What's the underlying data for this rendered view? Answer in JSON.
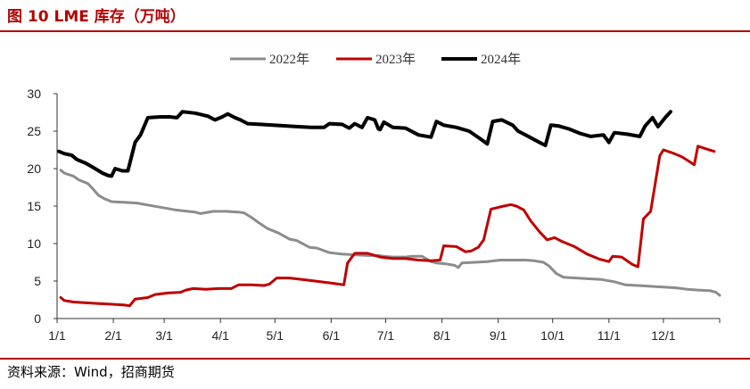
{
  "header": {
    "title": "图 10 LME 库存（万吨）"
  },
  "footer": {
    "source": "资料来源：Wind，招商期货"
  },
  "chart_data": {
    "type": "line",
    "x_ticks": [
      "1/1",
      "2/1",
      "3/1",
      "4/1",
      "5/1",
      "6/1",
      "7/1",
      "8/1",
      "9/1",
      "10/1",
      "11/1",
      "12/1"
    ],
    "y_ticks": [
      "0",
      "5",
      "10",
      "15",
      "20",
      "25",
      "30"
    ],
    "ylim": [
      0,
      30
    ],
    "grid": false,
    "legend_position": "top-center",
    "series": [
      {
        "name": "2022年",
        "color": "#8c8c8c",
        "stroke_width": 3,
        "points": [
          [
            "1/3",
            19.8
          ],
          [
            "1/5",
            19.4
          ],
          [
            "1/10",
            19.0
          ],
          [
            "1/13",
            18.5
          ],
          [
            "1/18",
            18.0
          ],
          [
            "1/20",
            17.5
          ],
          [
            "1/24",
            16.4
          ],
          [
            "1/27",
            16.0
          ],
          [
            "1/31",
            15.6
          ],
          [
            "2/7",
            15.5
          ],
          [
            "2/14",
            15.4
          ],
          [
            "2/21",
            15.1
          ],
          [
            "2/28",
            14.8
          ],
          [
            "3/7",
            14.5
          ],
          [
            "3/14",
            14.3
          ],
          [
            "3/18",
            14.2
          ],
          [
            "3/21",
            14.0
          ],
          [
            "3/28",
            14.3
          ],
          [
            "4/4",
            14.3
          ],
          [
            "4/11",
            14.2
          ],
          [
            "4/14",
            14.1
          ],
          [
            "4/18",
            13.5
          ],
          [
            "4/22",
            12.8
          ],
          [
            "4/27",
            12.0
          ],
          [
            "5/3",
            11.4
          ],
          [
            "5/9",
            10.6
          ],
          [
            "5/13",
            10.4
          ],
          [
            "5/20",
            9.5
          ],
          [
            "5/24",
            9.4
          ],
          [
            "5/31",
            8.8
          ],
          [
            "6/7",
            8.6
          ],
          [
            "6/14",
            8.5
          ],
          [
            "6/21",
            8.4
          ],
          [
            "6/27",
            8.4
          ],
          [
            "6/30",
            8.3
          ],
          [
            "7/5",
            8.2
          ],
          [
            "7/12",
            8.2
          ],
          [
            "7/15",
            8.3
          ],
          [
            "7/21",
            8.3
          ],
          [
            "7/26",
            7.6
          ],
          [
            "7/29",
            7.4
          ],
          [
            "8/3",
            7.3
          ],
          [
            "8/8",
            7.1
          ],
          [
            "8/10",
            6.8
          ],
          [
            "8/12",
            7.4
          ],
          [
            "8/19",
            7.5
          ],
          [
            "8/26",
            7.6
          ],
          [
            "9/2",
            7.8
          ],
          [
            "9/9",
            7.8
          ],
          [
            "9/16",
            7.8
          ],
          [
            "9/21",
            7.7
          ],
          [
            "9/26",
            7.5
          ],
          [
            "9/29",
            7.0
          ],
          [
            "10/3",
            6.0
          ],
          [
            "10/7",
            5.5
          ],
          [
            "10/14",
            5.4
          ],
          [
            "10/21",
            5.3
          ],
          [
            "10/28",
            5.2
          ],
          [
            "11/4",
            4.9
          ],
          [
            "11/10",
            4.5
          ],
          [
            "11/17",
            4.4
          ],
          [
            "11/24",
            4.3
          ],
          [
            "12/1",
            4.2
          ],
          [
            "12/8",
            4.1
          ],
          [
            "12/14",
            3.9
          ],
          [
            "12/20",
            3.8
          ],
          [
            "12/27",
            3.7
          ],
          [
            "12/30",
            3.5
          ],
          [
            "1/2",
            3.1
          ]
        ]
      },
      {
        "name": "2023年",
        "color": "#c00000",
        "stroke_width": 3,
        "points": [
          [
            "1/3",
            2.8
          ],
          [
            "1/5",
            2.4
          ],
          [
            "1/10",
            2.2
          ],
          [
            "1/17",
            2.1
          ],
          [
            "1/24",
            2.0
          ],
          [
            "1/31",
            1.9
          ],
          [
            "2/7",
            1.8
          ],
          [
            "2/10",
            1.7
          ],
          [
            "2/13",
            2.6
          ],
          [
            "2/20",
            2.8
          ],
          [
            "2/24",
            3.2
          ],
          [
            "3/3",
            3.4
          ],
          [
            "3/10",
            3.5
          ],
          [
            "3/13",
            3.8
          ],
          [
            "3/17",
            4.0
          ],
          [
            "3/24",
            3.9
          ],
          [
            "3/31",
            4.0
          ],
          [
            "4/7",
            4.0
          ],
          [
            "4/11",
            4.5
          ],
          [
            "4/18",
            4.5
          ],
          [
            "4/25",
            4.4
          ],
          [
            "4/28",
            4.6
          ],
          [
            "5/2",
            5.4
          ],
          [
            "5/9",
            5.4
          ],
          [
            "5/16",
            5.2
          ],
          [
            "5/23",
            5.0
          ],
          [
            "5/30",
            4.8
          ],
          [
            "6/5",
            4.6
          ],
          [
            "6/8",
            4.5
          ],
          [
            "6/10",
            7.4
          ],
          [
            "6/14",
            8.7
          ],
          [
            "6/21",
            8.7
          ],
          [
            "6/28",
            8.2
          ],
          [
            "7/5",
            8.0
          ],
          [
            "7/12",
            8.0
          ],
          [
            "7/19",
            7.8
          ],
          [
            "7/26",
            7.7
          ],
          [
            "7/31",
            7.8
          ],
          [
            "8/2",
            9.7
          ],
          [
            "8/9",
            9.6
          ],
          [
            "8/14",
            8.9
          ],
          [
            "8/17",
            9.0
          ],
          [
            "8/21",
            9.5
          ],
          [
            "8/24",
            10.5
          ],
          [
            "8/28",
            14.6
          ],
          [
            "9/4",
            15.0
          ],
          [
            "9/8",
            15.2
          ],
          [
            "9/11",
            15.0
          ],
          [
            "9/15",
            14.5
          ],
          [
            "9/19",
            13.0
          ],
          [
            "9/24",
            11.5
          ],
          [
            "9/28",
            10.5
          ],
          [
            "10/2",
            10.8
          ],
          [
            "10/6",
            10.3
          ],
          [
            "10/13",
            9.6
          ],
          [
            "10/20",
            8.6
          ],
          [
            "10/27",
            7.9
          ],
          [
            "11/1",
            7.6
          ],
          [
            "11/3",
            8.3
          ],
          [
            "11/8",
            8.2
          ],
          [
            "11/14",
            7.2
          ],
          [
            "11/17",
            6.9
          ],
          [
            "11/20",
            13.3
          ],
          [
            "11/24",
            14.3
          ],
          [
            "11/29",
            21.7
          ],
          [
            "12/1",
            22.5
          ],
          [
            "12/6",
            22.1
          ],
          [
            "12/11",
            21.6
          ],
          [
            "12/15",
            21.0
          ],
          [
            "12/18",
            20.5
          ],
          [
            "12/20",
            23.0
          ],
          [
            "12/25",
            22.6
          ],
          [
            "12/29",
            22.3
          ]
        ]
      },
      {
        "name": "2024年",
        "color": "#000000",
        "stroke_width": 4,
        "points": [
          [
            "1/2",
            22.3
          ],
          [
            "1/5",
            22.0
          ],
          [
            "1/9",
            21.8
          ],
          [
            "1/12",
            21.2
          ],
          [
            "1/17",
            20.7
          ],
          [
            "1/22",
            20.0
          ],
          [
            "1/26",
            19.4
          ],
          [
            "1/29",
            19.1
          ],
          [
            "1/31",
            19.0
          ],
          [
            "2/2",
            20.0
          ],
          [
            "2/6",
            19.7
          ],
          [
            "2/9",
            19.7
          ],
          [
            "2/13",
            23.5
          ],
          [
            "2/16",
            24.5
          ],
          [
            "2/20",
            26.8
          ],
          [
            "2/27",
            26.9
          ],
          [
            "3/4",
            26.9
          ],
          [
            "3/8",
            26.8
          ],
          [
            "3/11",
            27.6
          ],
          [
            "3/18",
            27.4
          ],
          [
            "3/25",
            27.0
          ],
          [
            "3/29",
            26.5
          ],
          [
            "4/2",
            26.9
          ],
          [
            "4/5",
            27.3
          ],
          [
            "4/9",
            26.8
          ],
          [
            "4/12",
            26.5
          ],
          [
            "4/16",
            26.0
          ],
          [
            "4/23",
            25.9
          ],
          [
            "4/30",
            25.8
          ],
          [
            "5/7",
            25.7
          ],
          [
            "5/14",
            25.6
          ],
          [
            "5/21",
            25.5
          ],
          [
            "5/28",
            25.5
          ],
          [
            "5/31",
            26.0
          ],
          [
            "6/7",
            25.9
          ],
          [
            "6/11",
            25.4
          ],
          [
            "6/14",
            26.0
          ],
          [
            "6/18",
            25.5
          ],
          [
            "6/21",
            26.8
          ],
          [
            "6/25",
            26.5
          ],
          [
            "6/27",
            25.3
          ],
          [
            "6/28",
            25.2
          ],
          [
            "6/30",
            26.2
          ],
          [
            "7/5",
            25.5
          ],
          [
            "7/12",
            25.4
          ],
          [
            "7/19",
            24.5
          ],
          [
            "7/26",
            24.2
          ],
          [
            "7/29",
            26.3
          ],
          [
            "8/2",
            25.8
          ],
          [
            "8/9",
            25.5
          ],
          [
            "8/16",
            25.0
          ],
          [
            "8/22",
            24.0
          ],
          [
            "8/26",
            23.3
          ],
          [
            "8/29",
            26.3
          ],
          [
            "9/3",
            26.5
          ],
          [
            "9/9",
            25.8
          ],
          [
            "9/12",
            25.0
          ],
          [
            "9/16",
            24.5
          ],
          [
            "9/23",
            23.6
          ],
          [
            "9/27",
            23.1
          ],
          [
            "9/30",
            25.8
          ],
          [
            "10/4",
            25.7
          ],
          [
            "10/10",
            25.3
          ],
          [
            "10/16",
            24.7
          ],
          [
            "10/22",
            24.3
          ],
          [
            "10/29",
            24.5
          ],
          [
            "11/1",
            23.5
          ],
          [
            "11/4",
            24.8
          ],
          [
            "11/11",
            24.6
          ],
          [
            "11/18",
            24.3
          ],
          [
            "11/21",
            25.7
          ],
          [
            "11/25",
            26.8
          ],
          [
            "11/28",
            25.6
          ],
          [
            "12/2",
            26.8
          ],
          [
            "12/5",
            27.6
          ]
        ]
      }
    ]
  }
}
